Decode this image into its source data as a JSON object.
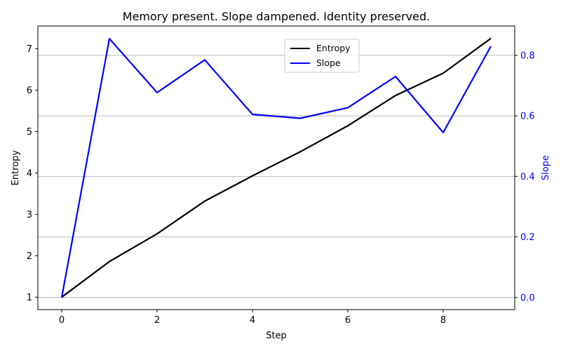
{
  "chart_data": {
    "type": "line",
    "title": "Memory present. Slope dampened. Identity preserved.",
    "xlabel": "Step",
    "ylabel": "Entropy",
    "y2label": "Slope",
    "x": [
      0,
      1,
      2,
      3,
      4,
      5,
      6,
      7,
      8,
      9
    ],
    "xlim": [
      -0.5,
      9.5
    ],
    "xticks": [
      0,
      2,
      4,
      6,
      8
    ],
    "ylim": [
      0.7,
      7.55
    ],
    "yticks": [
      1,
      2,
      3,
      4,
      5,
      6,
      7
    ],
    "y2lim": [
      -0.04,
      0.897
    ],
    "y2ticks": [
      0.0,
      0.2,
      0.4,
      0.6,
      0.8
    ],
    "y2tick_labels": [
      "0.0",
      "0.2",
      "0.4",
      "0.6",
      "0.8"
    ],
    "grid": "horizontal lines at right-axis ticks",
    "legend": "upper center",
    "series": [
      {
        "name": "Entropy",
        "axis": "left",
        "color": "#000000",
        "values": [
          1.0,
          1.86,
          2.53,
          3.32,
          3.93,
          4.51,
          5.14,
          5.87,
          6.41,
          7.25
        ]
      },
      {
        "name": "Slope",
        "axis": "right",
        "color": "#0000ff",
        "values": [
          0.0,
          0.855,
          0.677,
          0.785,
          0.605,
          0.592,
          0.627,
          0.73,
          0.545,
          0.83
        ]
      }
    ]
  }
}
